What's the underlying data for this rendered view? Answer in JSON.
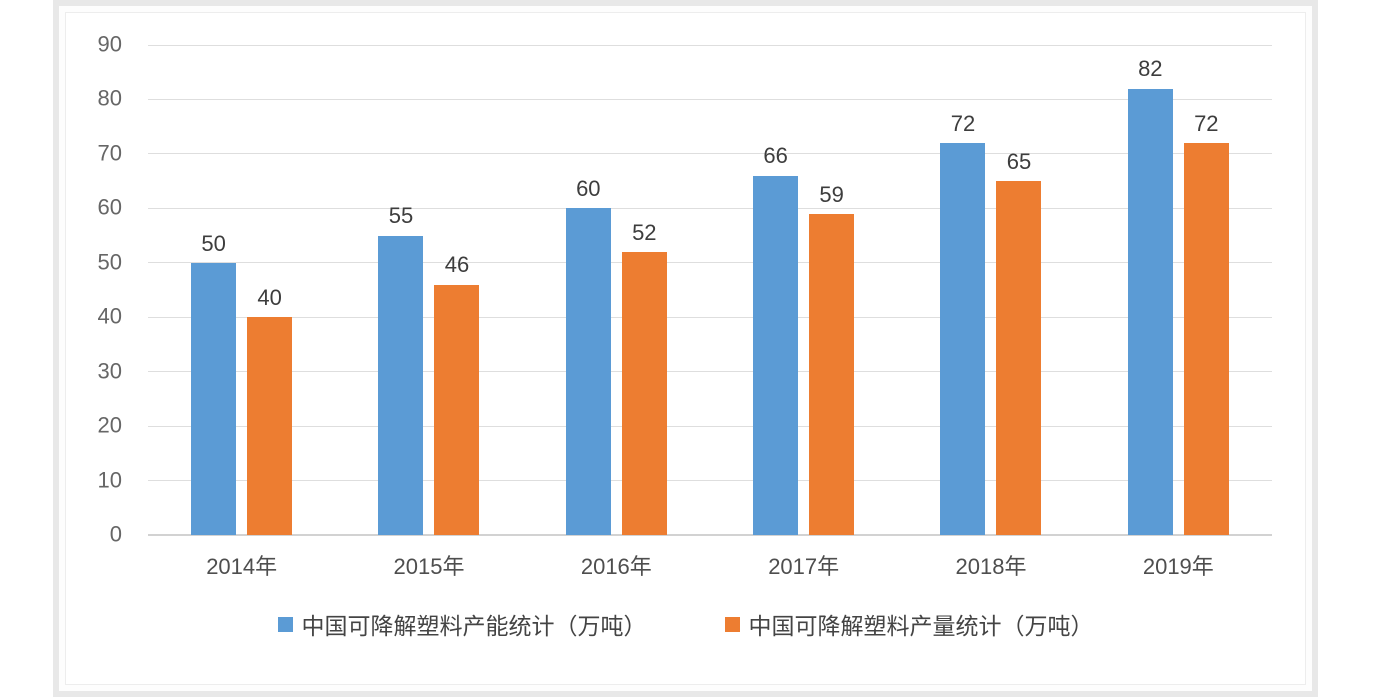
{
  "chart_data": {
    "type": "bar",
    "title": "",
    "xlabel": "",
    "ylabel": "",
    "categories": [
      "2014年",
      "2015年",
      "2016年",
      "2017年",
      "2018年",
      "2019年"
    ],
    "series": [
      {
        "name": "中国可降解塑料产能统计（万吨）",
        "color": "#5B9BD5",
        "values": [
          50,
          55,
          60,
          66,
          72,
          82
        ]
      },
      {
        "name": "中国可降解塑料产量统计（万吨）",
        "color": "#ED7D31",
        "values": [
          40,
          46,
          52,
          59,
          65,
          72
        ]
      }
    ],
    "ylim": [
      0,
      90
    ],
    "yticks": [
      0,
      10,
      20,
      30,
      40,
      50,
      60,
      70,
      80,
      90
    ],
    "grid": true,
    "data_labels": true,
    "legend_position": "bottom"
  },
  "colors": {
    "grid": "#dedede",
    "baseline": "#d2d2d2",
    "axis_text": "#666666",
    "data_label_text": "#3d3d3d",
    "x_label_text": "#4e4e4e",
    "legend_text": "#444444",
    "frame_border": "#e8e8e8",
    "inner_border": "#ededed",
    "background": "#ffffff"
  }
}
